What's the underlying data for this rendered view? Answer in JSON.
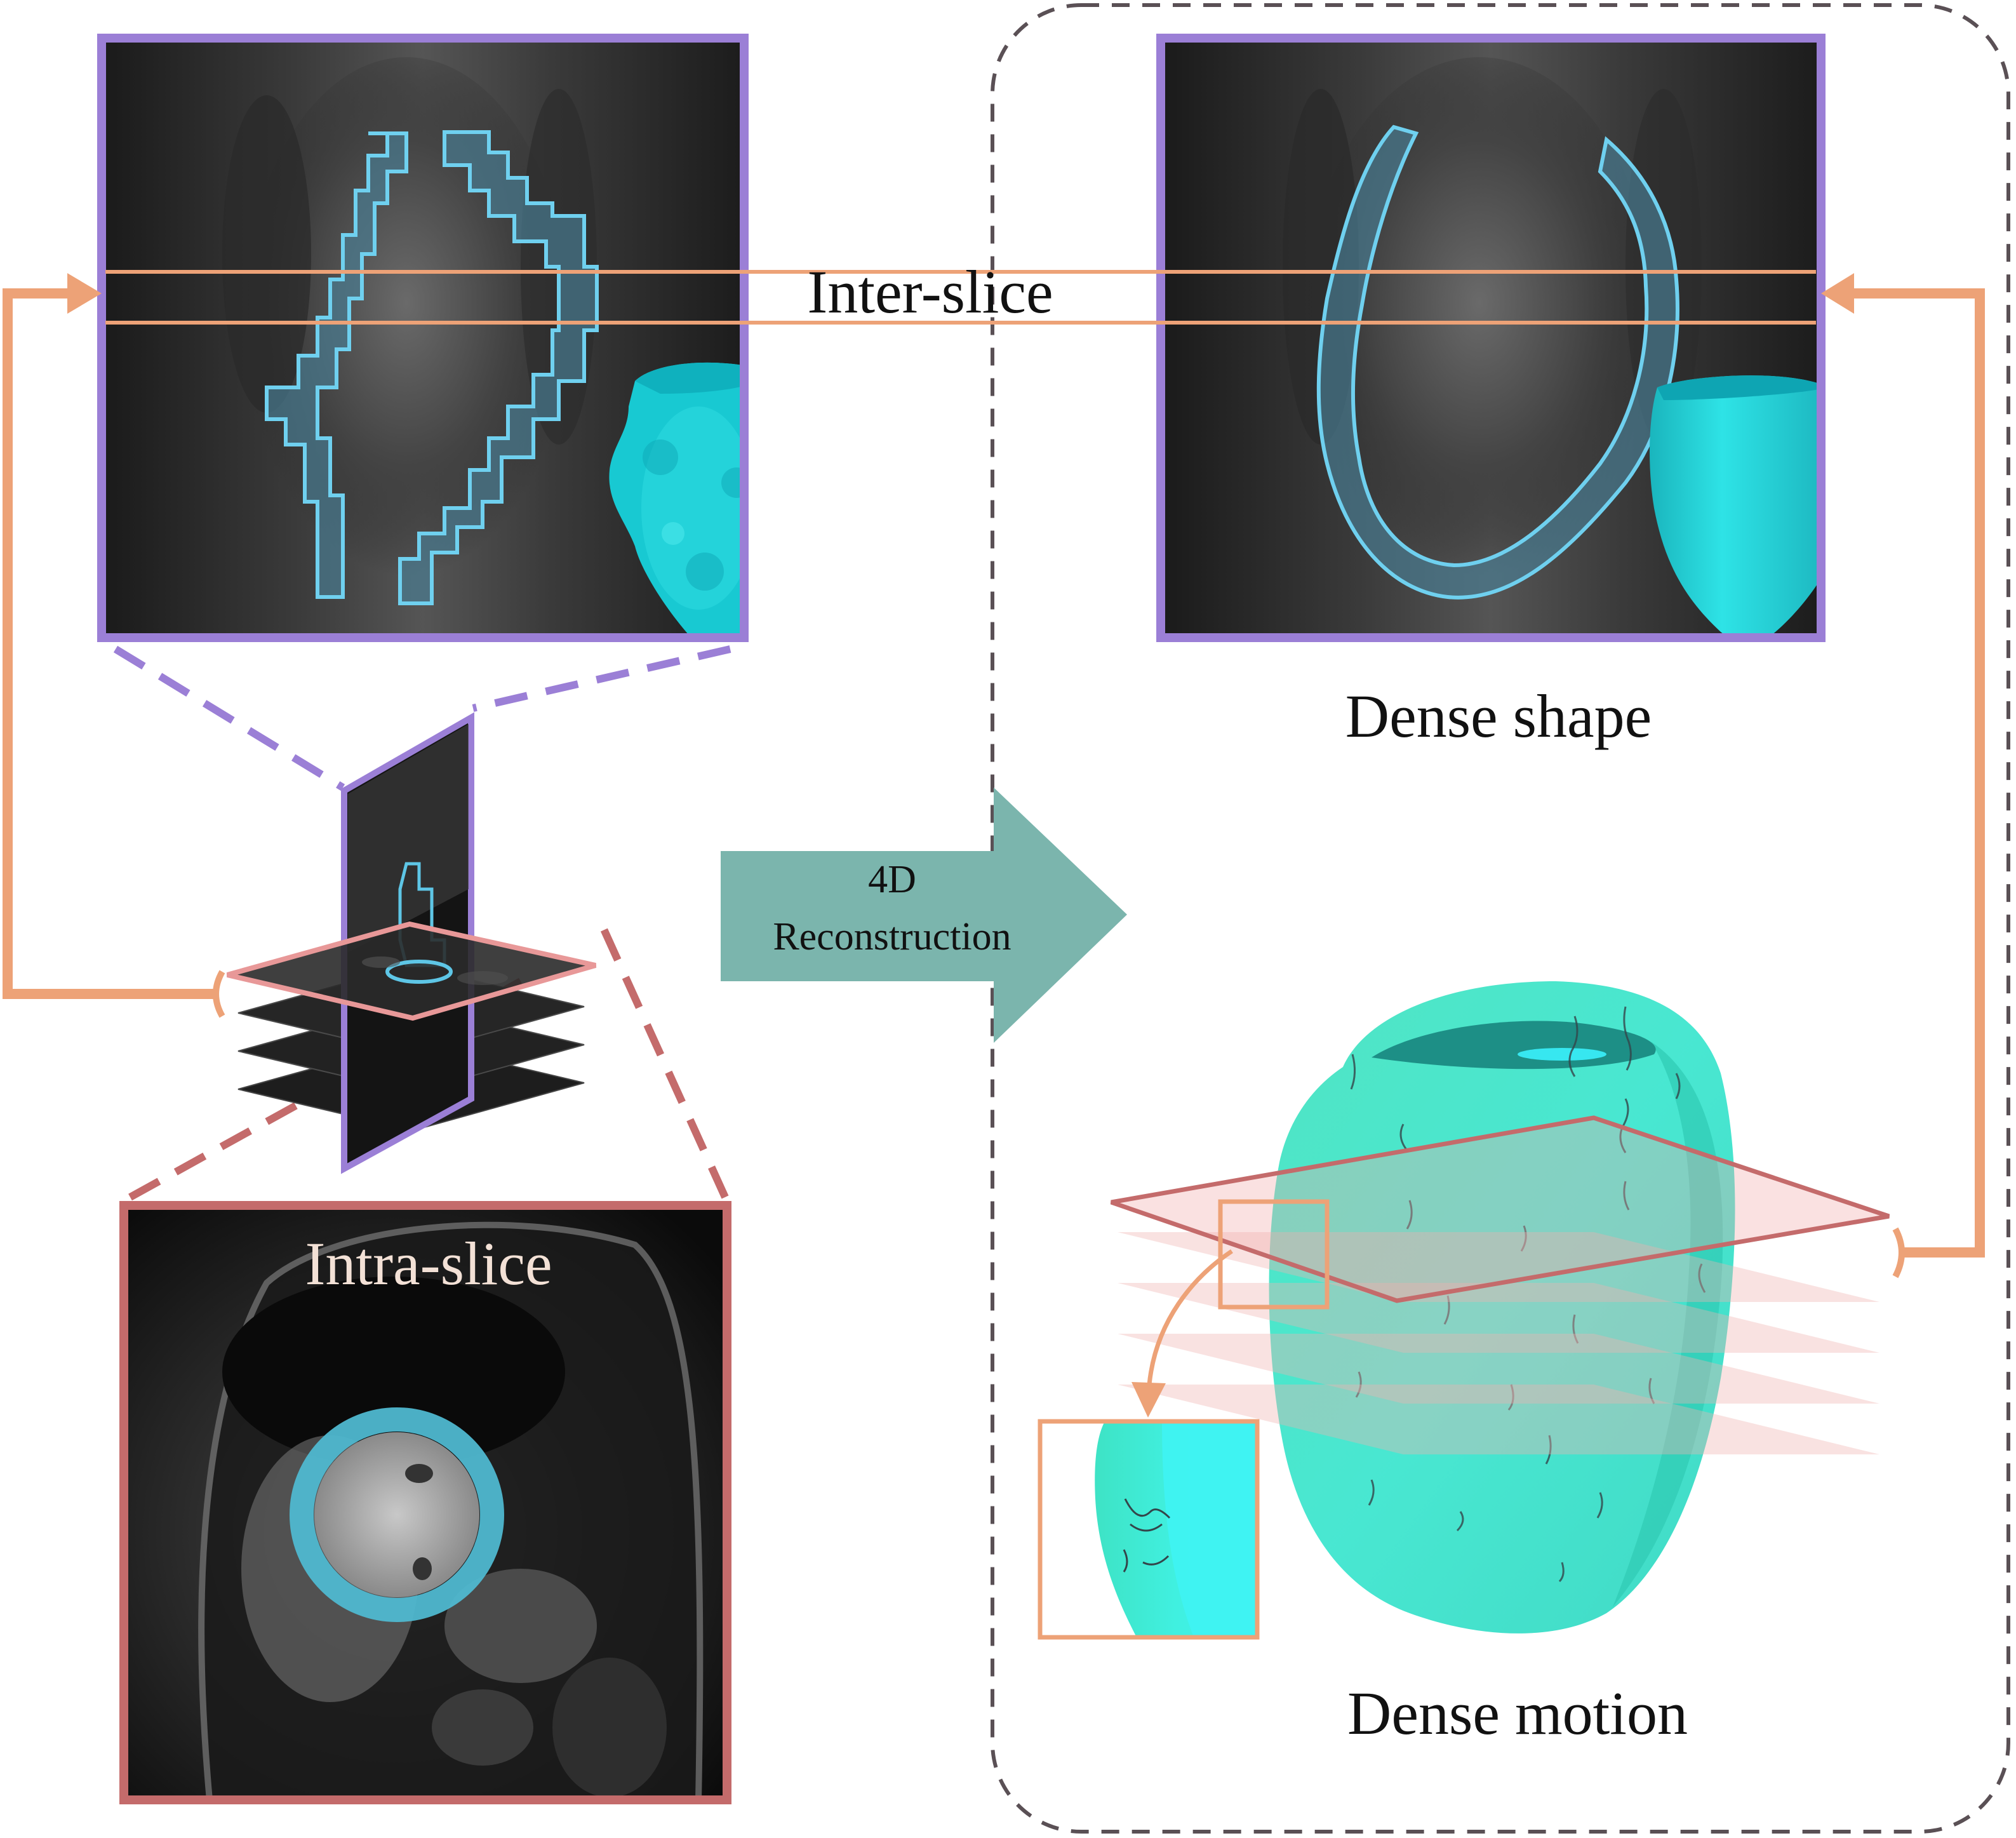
{
  "labels": {
    "inter_slice": "Inter-slice",
    "intra_slice": "Intra-slice",
    "dense_shape": "Dense shape",
    "dense_motion": "Dense motion",
    "reconstruction_line1": "4D",
    "reconstruction_line2": "Reconstruction"
  },
  "colors": {
    "purple": "#9b7fd6",
    "red": "#c46b6b",
    "orange": "#eda277",
    "teal_arrow": "#7bb5ad",
    "myocardium_cyan": "#5ec6e6",
    "heart_cyan": "#26d4d8",
    "heart_green": "#3ce0b8",
    "dashed_border": "#5a5055"
  }
}
